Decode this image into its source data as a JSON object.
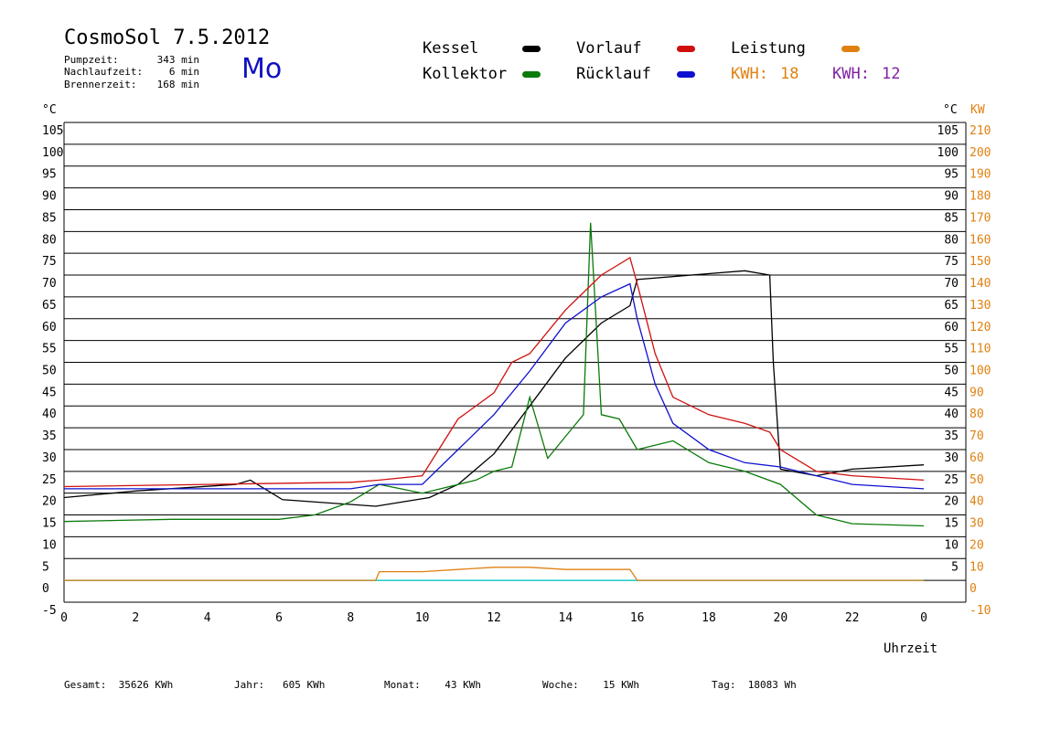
{
  "header": {
    "title": "CosmoSol 7.5.2012",
    "day": "Mo",
    "stats": [
      {
        "label": "Pumpzeit:",
        "value": "343 min"
      },
      {
        "label": "Nachlaufzeit:",
        "value": "6 min"
      },
      {
        "label": "Brennerzeit:",
        "value": "168 min"
      }
    ]
  },
  "legend": {
    "kessel": "Kessel",
    "kollektor": "Kollektor",
    "vorlauf": "Vorlauf",
    "ruecklauf": "Rücklauf",
    "leistung": "Leistung",
    "kwh1_label": "KWH:",
    "kwh1_value": "18",
    "kwh2_label": "KWH:",
    "kwh2_value": "12"
  },
  "colors": {
    "kessel": "#000000",
    "kollektor": "#0a7a0a",
    "vorlauf": "#d01010",
    "ruecklauf": "#1010d0",
    "leistung": "#e08010",
    "kwh2": "#8020a0",
    "pump": "#20d0d0"
  },
  "footer": {
    "gesamt": "Gesamt:  35626 KWh",
    "jahr": "Jahr:   605 KWh",
    "monat": "Monat:    43 KWh",
    "woche": "Woche:    15 KWh",
    "tag": "Tag:  18083 Wh"
  },
  "chart_data": {
    "type": "line",
    "xlabel": "Uhrzeit",
    "ylabel_left": "°C",
    "ylabel_right_1": "°C",
    "ylabel_right_2": "KW",
    "xlim": [
      0,
      24
    ],
    "ylim": [
      -5,
      105
    ],
    "y2lim": [
      -10,
      210
    ],
    "grid": true,
    "x_ticks": [
      "0",
      "2",
      "4",
      "6",
      "8",
      "10",
      "12",
      "14",
      "16",
      "18",
      "20",
      "22",
      "0"
    ],
    "y_ticks_left": [
      "105",
      "100",
      "95",
      "90",
      "85",
      "80",
      "75",
      "70",
      "65",
      "60",
      "55",
      "50",
      "45",
      "40",
      "35",
      "30",
      "25",
      "20",
      "15",
      "10",
      "5",
      "0",
      "-5"
    ],
    "y_ticks_right": [
      "105",
      "100",
      "95",
      "90",
      "85",
      "80",
      "75",
      "70",
      "65",
      "60",
      "55",
      "50",
      "45",
      "40",
      "35",
      "30",
      "25",
      "20",
      "15",
      "10",
      "5"
    ],
    "y_ticks_kw": [
      "210",
      "200",
      "190",
      "180",
      "170",
      "160",
      "150",
      "140",
      "130",
      "120",
      "110",
      "100",
      "90",
      "80",
      "70",
      "60",
      "50",
      "40",
      "30",
      "20",
      "10",
      "0",
      "-10"
    ],
    "series": [
      {
        "name": "Kessel",
        "x": [
          0,
          2,
          4.8,
          5.2,
          6.1,
          8.7,
          10.2,
          11,
          12,
          13,
          14,
          15,
          15.8,
          16,
          19,
          19.7,
          19.8,
          20,
          21,
          22,
          24
        ],
        "y": [
          19,
          20.5,
          22,
          23,
          18.5,
          17,
          19,
          22,
          29,
          40,
          51,
          59,
          63,
          69,
          71,
          70,
          50,
          25.5,
          24,
          25.5,
          26.5
        ]
      },
      {
        "name": "Kollektor",
        "x": [
          0,
          3,
          6,
          7,
          8,
          8.8,
          10,
          11.5,
          12,
          12.5,
          13,
          13.5,
          14,
          14.5,
          14.7,
          15,
          15.5,
          16,
          17,
          18,
          19,
          20,
          21,
          22,
          24
        ],
        "y": [
          13.5,
          14,
          14,
          15,
          18,
          22,
          20,
          23,
          25,
          26,
          42,
          28,
          33,
          38,
          82,
          38,
          37,
          30,
          32,
          27,
          25,
          22,
          15,
          13,
          12.5
        ]
      },
      {
        "name": "Vorlauf",
        "x": [
          0,
          4,
          8,
          8.8,
          10,
          11,
          12,
          12.5,
          13,
          14,
          15,
          15.8,
          16,
          16.5,
          17,
          18,
          19,
          19.7,
          20,
          21,
          22,
          24
        ],
        "y": [
          21.5,
          22,
          22.5,
          23,
          24,
          37,
          43,
          50,
          52,
          62,
          70,
          74,
          68,
          52,
          42,
          38,
          36,
          34,
          30,
          25,
          24,
          23
        ]
      },
      {
        "name": "Rücklauf",
        "x": [
          0,
          4,
          8,
          8.8,
          10,
          11,
          12,
          13,
          14,
          15,
          15.8,
          16,
          16.5,
          17,
          18,
          19,
          20,
          21,
          22,
          24
        ],
        "y": [
          21,
          21,
          21,
          22,
          22,
          30,
          38,
          48,
          59,
          65,
          68,
          60,
          45,
          36,
          30,
          27,
          26,
          24,
          22,
          21
        ]
      },
      {
        "name": "Leistung",
        "x": [
          0,
          8.7,
          8.8,
          10,
          11,
          12,
          13,
          14,
          14.5,
          15,
          15.8,
          16,
          24
        ],
        "y": [
          0,
          0,
          2,
          2,
          2.5,
          3,
          3,
          2.5,
          2.5,
          2.5,
          2.5,
          0,
          0
        ]
      }
    ]
  }
}
